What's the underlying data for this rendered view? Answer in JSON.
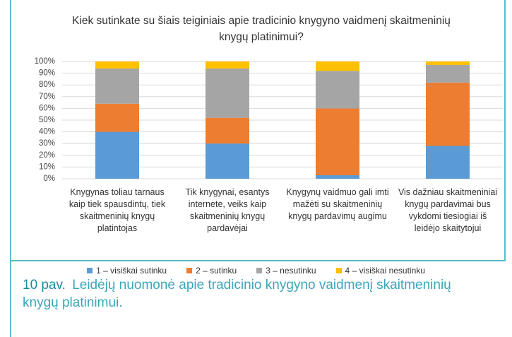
{
  "chart_data": {
    "type": "stacked_bar",
    "title": "Kiek sutinkate su šiais teiginiais apie tradicinio knygyno vaidmenį skaitmeninių knygų platinimui?",
    "categories": [
      "Knygynas toliau tarnaus kaip tiek spausdintų, tiek skaitmeninių knygų platintojas",
      "Tik knygynai, esantys internete, veiks kaip skaitmeninių knygų pardavėjai",
      "Knygynų vaidmuo gali imti mažėti su skaitmeninių knygų pardavimų augimu",
      "Vis dažniau skaitmeniniai knygų pardavimai bus vykdomi tiesiogiai iš leidėjo skaitytojui"
    ],
    "series": [
      {
        "name": "1 – visiškai sutinku",
        "color": "#5b9bd5",
        "values": [
          40,
          30,
          3,
          28
        ]
      },
      {
        "name": "2 – sutinku",
        "color": "#ed7d31",
        "values": [
          24,
          22,
          57,
          54
        ]
      },
      {
        "name": "3 – nesutinku",
        "color": "#a5a5a5",
        "values": [
          30,
          42,
          32,
          15
        ]
      },
      {
        "name": "4 – visiškai nesutinku",
        "color": "#ffc000",
        "values": [
          6,
          6,
          8,
          3
        ]
      }
    ],
    "ylim": [
      0,
      100
    ],
    "yticks": [
      {
        "value": 0,
        "label": "0%"
      },
      {
        "value": 10,
        "label": "10%"
      },
      {
        "value": 20,
        "label": "20%"
      },
      {
        "value": 30,
        "label": "30%"
      },
      {
        "value": 40,
        "label": "40%"
      },
      {
        "value": 50,
        "label": "50%"
      },
      {
        "value": 60,
        "label": "60%"
      },
      {
        "value": 70,
        "label": "70%"
      },
      {
        "value": 80,
        "label": "80%"
      },
      {
        "value": 90,
        "label": "90%"
      },
      {
        "value": 100,
        "label": "100%"
      }
    ],
    "grid": true,
    "legend": "bottom"
  },
  "caption": {
    "label": "10 pav.",
    "text": "Leidėjų nuomonė apie tradicinio knygyno vaidmenį skaitmeninių knygų platinimui."
  }
}
